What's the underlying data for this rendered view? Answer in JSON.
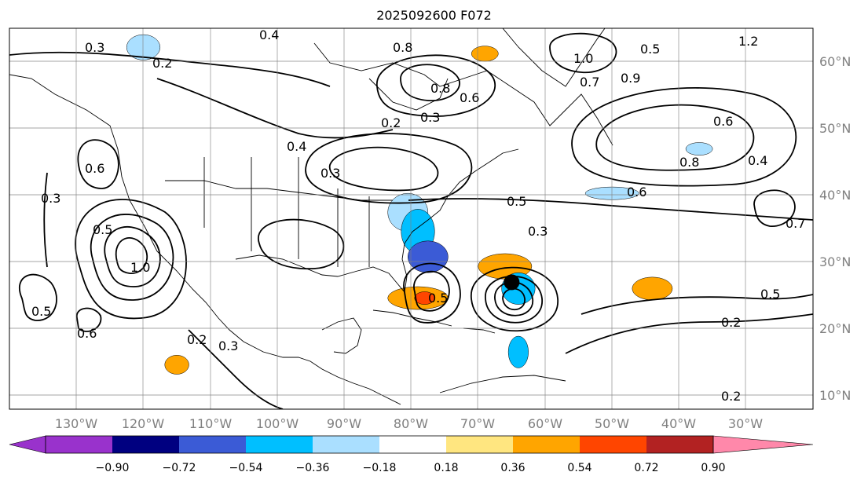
{
  "title": "2025092600 F072",
  "map": {
    "projection": "plate-carree",
    "lon_range": [
      -140,
      -20
    ],
    "lat_range": [
      5,
      65
    ],
    "lon_labels": [
      "130°W",
      "120°W",
      "110°W",
      "100°W",
      "90°W",
      "80°W",
      "70°W",
      "60°W",
      "50°W",
      "40°W",
      "30°W"
    ],
    "lat_labels": [
      "60°N",
      "50°N",
      "40°N",
      "30°N",
      "20°N",
      "10°N"
    ],
    "grid": true,
    "marker": {
      "label": "storm center",
      "lon": -65,
      "lat": 25,
      "color": "#000000"
    }
  },
  "contour_labels": [
    "0.3",
    "0.2",
    "0.4",
    "0.8",
    "0.6",
    "1.0",
    "0.7",
    "0.9",
    "1.2",
    "0.5",
    "0.3",
    "0.2",
    "0.4",
    "0.6",
    "0.8",
    "0.6",
    "0.4",
    "0.5",
    "0.3",
    "0.6",
    "0.3",
    "0.5",
    "1.0",
    "0.7",
    "0.5",
    "0.6",
    "0.2",
    "0.3",
    "0.2",
    "0.5",
    "0.3",
    "0.2",
    "0.5",
    "0.8"
  ],
  "colorbar": {
    "ticks": [
      "−0.90",
      "−0.72",
      "−0.54",
      "−0.36",
      "−0.18",
      "0.18",
      "0.36",
      "0.54",
      "0.72",
      "0.90"
    ],
    "colors": {
      "under": "#9932cc",
      "bins": [
        "#9932cc",
        "#000080",
        "#3b5bd6",
        "#00bfff",
        "#aadfff",
        "#ffffff",
        "#ffe680",
        "#ffa500",
        "#ff4500",
        "#b22222"
      ],
      "over": "#ff88aa"
    }
  },
  "shading": [
    {
      "name": "se-us-blue-1",
      "lon": -80.5,
      "lat": 36,
      "rx": 3,
      "ry": 3,
      "color": "#aadfff"
    },
    {
      "name": "se-us-blue-2",
      "lon": -79,
      "lat": 33,
      "rx": 2.5,
      "ry": 3.5,
      "color": "#00bfff"
    },
    {
      "name": "se-us-blue-3",
      "lon": -77.5,
      "lat": 29,
      "rx": 3,
      "ry": 2.5,
      "color": "#3b5bd6"
    },
    {
      "name": "bahamas-orange",
      "lon": -66,
      "lat": 27.5,
      "rx": 4,
      "ry": 2,
      "color": "#ffa500"
    },
    {
      "name": "storm-blue",
      "lon": -64,
      "lat": 24,
      "rx": 2.5,
      "ry": 2.5,
      "color": "#00bfff"
    },
    {
      "name": "gulf-orange",
      "lon": -79,
      "lat": 22.5,
      "rx": 4.5,
      "ry": 1.8,
      "color": "#ffa500"
    },
    {
      "name": "gulf-red",
      "lon": -78,
      "lat": 22.5,
      "rx": 1.5,
      "ry": 1,
      "color": "#ff4500"
    },
    {
      "name": "mid-atl-orange",
      "lon": -44,
      "lat": 24,
      "rx": 3,
      "ry": 1.8,
      "color": "#ffa500"
    },
    {
      "name": "carib-blue",
      "lon": -64,
      "lat": 14,
      "rx": 1.5,
      "ry": 2.5,
      "color": "#00bfff"
    },
    {
      "name": "east-pac-orange",
      "lon": -115,
      "lat": 12,
      "rx": 1.8,
      "ry": 1.5,
      "color": "#ffa500"
    },
    {
      "name": "pac-nw-blue",
      "lon": -120,
      "lat": 62,
      "rx": 2.5,
      "ry": 2,
      "color": "#aadfff"
    },
    {
      "name": "n-atl-blue",
      "lon": -37,
      "lat": 46,
      "rx": 2,
      "ry": 1,
      "color": "#aadfff"
    },
    {
      "name": "hudson-orange",
      "lon": -69,
      "lat": 61,
      "rx": 2,
      "ry": 1.2,
      "color": "#ffa500"
    },
    {
      "name": "atl-light-blue",
      "lon": -50,
      "lat": 39,
      "rx": 4,
      "ry": 1,
      "color": "#aadfff"
    }
  ]
}
